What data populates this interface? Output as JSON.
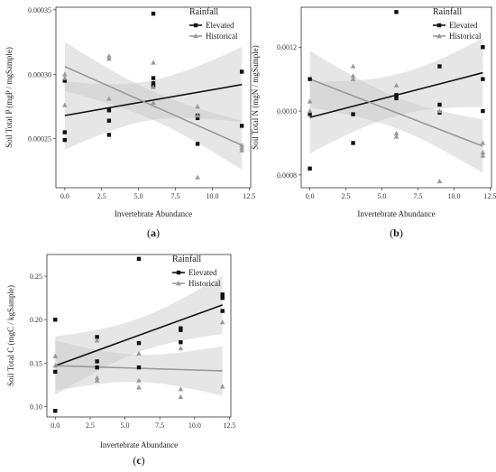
{
  "chart_data": [
    {
      "type": "scatter",
      "panel_label": "(a)",
      "panel_letter": "a",
      "xlabel": "Invertebrate Abundance",
      "ylabel": "Soil Total P (mgP / mgSample)",
      "xticks": [
        "0.0",
        "2.5",
        "5.0",
        "7.5",
        "10.0",
        "12.5"
      ],
      "yticks": [
        "0.00025",
        "0.00030",
        "0.00035"
      ],
      "xlim": [
        -0.6,
        12.6
      ],
      "ylim": [
        0.000212,
        0.000352
      ],
      "legend_title": "Rainfall",
      "legend_position": "top-right",
      "series": [
        {
          "name": "Elevated",
          "marker": "square",
          "color": "#111111",
          "x": [
            0,
            0,
            0,
            3,
            3,
            3,
            6,
            6,
            6,
            6,
            9,
            9,
            9,
            12,
            12
          ],
          "y": [
            0.000295,
            0.000255,
            0.000249,
            0.000272,
            0.000264,
            0.000253,
            0.000347,
            0.000297,
            0.000293,
            0.000291,
            0.000268,
            0.000266,
            0.000246,
            0.000302,
            0.00026
          ],
          "fit": [
            0.000268,
            0.000292
          ]
        },
        {
          "name": "Historical",
          "marker": "triangle",
          "color": "#999999",
          "x": [
            0,
            0,
            0,
            3,
            3,
            3,
            6,
            6,
            6,
            9,
            9,
            9,
            12,
            12,
            12
          ],
          "y": [
            0.0003,
            0.000297,
            0.000276,
            0.000314,
            0.000312,
            0.000281,
            0.000309,
            0.00029,
            0.000278,
            0.000275,
            0.000268,
            0.00022,
            0.000245,
            0.000243,
            0.000241
          ],
          "fit": [
            0.000306,
            0.000245
          ]
        }
      ]
    },
    {
      "type": "scatter",
      "panel_label": "(b)",
      "panel_letter": "b",
      "xlabel": "Invertebrate Abundance",
      "ylabel": "Soil Total N (mgN / mgSample)",
      "xticks": [
        "0.0",
        "2.5",
        "5.0",
        "7.5",
        "10.0",
        "12.5"
      ],
      "yticks": [
        "0.0008",
        "0.0010",
        "0.0012"
      ],
      "xlim": [
        -0.6,
        12.6
      ],
      "ylim": [
        0.00076,
        0.001325
      ],
      "legend_title": "Rainfall",
      "legend_position": "top-right",
      "series": [
        {
          "name": "Elevated",
          "marker": "square",
          "color": "#111111",
          "x": [
            0,
            0,
            0,
            3,
            3,
            6,
            6,
            6,
            9,
            9,
            9,
            12,
            12,
            12
          ],
          "y": [
            0.0011,
            0.00099,
            0.00082,
            0.00099,
            0.0009,
            0.00131,
            0.00105,
            0.00104,
            0.00114,
            0.00102,
            0.000995,
            0.0012,
            0.0011,
            0.001
          ],
          "fit": [
            0.00098,
            0.00112
          ]
        },
        {
          "name": "Historical",
          "marker": "triangle",
          "color": "#999999",
          "x": [
            0,
            0,
            3,
            3,
            3,
            6,
            6,
            6,
            9,
            9,
            12,
            12,
            12
          ],
          "y": [
            0.00103,
            0.001,
            0.00114,
            0.00111,
            0.0011,
            0.00108,
            0.00093,
            0.00092,
            0.001,
            0.00078,
            0.0009,
            0.00087,
            0.00086
          ],
          "fit": [
            0.0011,
            0.00089
          ]
        }
      ]
    },
    {
      "type": "scatter",
      "panel_label": "(c)",
      "panel_letter": "c",
      "xlabel": "Invertebrate Abundance",
      "ylabel": "Soil Total C (mgC / kgSample)",
      "xticks": [
        "0.0",
        "2.5",
        "5.0",
        "7.5",
        "10.0",
        "12.5"
      ],
      "yticks": [
        "0.10",
        "0.15",
        "0.20",
        "0.25"
      ],
      "xlim": [
        -0.6,
        12.6
      ],
      "ylim": [
        0.088,
        0.275
      ],
      "legend_title": "Rainfall",
      "legend_position": "top-right",
      "series": [
        {
          "name": "Elevated",
          "marker": "square",
          "color": "#111111",
          "x": [
            0,
            0,
            0,
            3,
            3,
            3,
            6,
            6,
            6,
            9,
            9,
            9,
            12,
            12,
            12
          ],
          "y": [
            0.2,
            0.14,
            0.095,
            0.18,
            0.152,
            0.145,
            0.27,
            0.173,
            0.145,
            0.19,
            0.188,
            0.174,
            0.229,
            0.225,
            0.21
          ],
          "fit": [
            0.147,
            0.217
          ]
        },
        {
          "name": "Historical",
          "marker": "triangle",
          "color": "#999999",
          "x": [
            0,
            0,
            3,
            3,
            3,
            6,
            6,
            6,
            9,
            9,
            9,
            12,
            12
          ],
          "y": [
            0.158,
            0.147,
            0.176,
            0.133,
            0.13,
            0.161,
            0.13,
            0.122,
            0.167,
            0.12,
            0.111,
            0.197,
            0.123
          ],
          "fit": [
            0.147,
            0.141
          ]
        }
      ]
    }
  ]
}
